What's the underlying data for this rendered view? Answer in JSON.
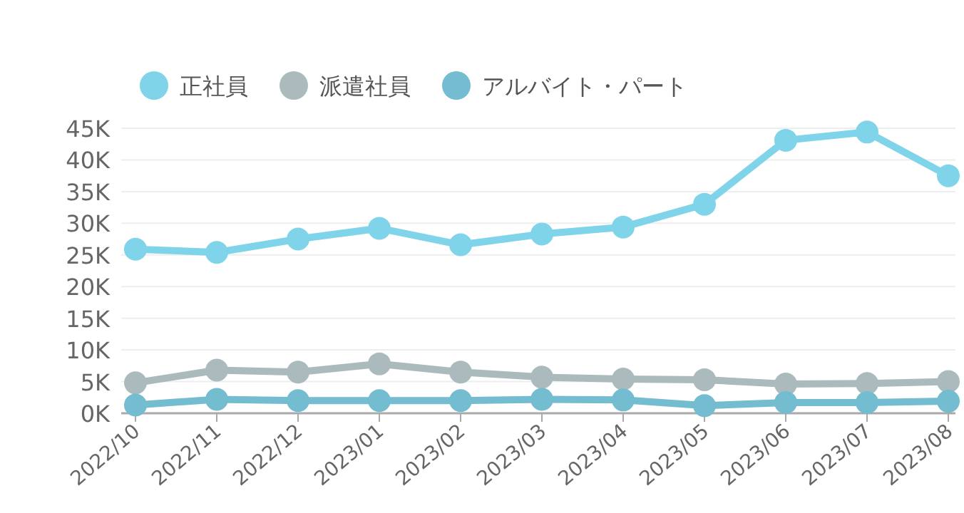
{
  "chart_data": {
    "type": "line",
    "categories": [
      "2022/10",
      "2022/11",
      "2022/12",
      "2023/01",
      "2023/02",
      "2023/03",
      "2023/04",
      "2023/05",
      "2023/06",
      "2023/07",
      "2023/08"
    ],
    "series": [
      {
        "name": "正社員",
        "color": "#80d4ea",
        "values": [
          25900,
          25400,
          27500,
          29200,
          26600,
          28300,
          29400,
          33000,
          43100,
          44400,
          37500
        ]
      },
      {
        "name": "派遣社員",
        "color": "#abbbbd",
        "values": [
          4800,
          6800,
          6500,
          7800,
          6500,
          5700,
          5400,
          5300,
          4600,
          4700,
          5000
        ]
      },
      {
        "name": "アルバイト・パート",
        "color": "#74bccf",
        "values": [
          1300,
          2200,
          2000,
          2000,
          2000,
          2200,
          2100,
          1200,
          1700,
          1700,
          1900
        ]
      }
    ],
    "ylim": [
      0,
      45000
    ],
    "yticks": [
      {
        "value": 0,
        "label": "0K"
      },
      {
        "value": 5000,
        "label": "5K"
      },
      {
        "value": 10000,
        "label": "10K"
      },
      {
        "value": 15000,
        "label": "15K"
      },
      {
        "value": 20000,
        "label": "20K"
      },
      {
        "value": 25000,
        "label": "25K"
      },
      {
        "value": 30000,
        "label": "30K"
      },
      {
        "value": 35000,
        "label": "35K"
      },
      {
        "value": 40000,
        "label": "40K"
      },
      {
        "value": 45000,
        "label": "45K"
      }
    ],
    "grid": "y",
    "legend": "top left",
    "marker": "circle",
    "line_style": "solid"
  }
}
